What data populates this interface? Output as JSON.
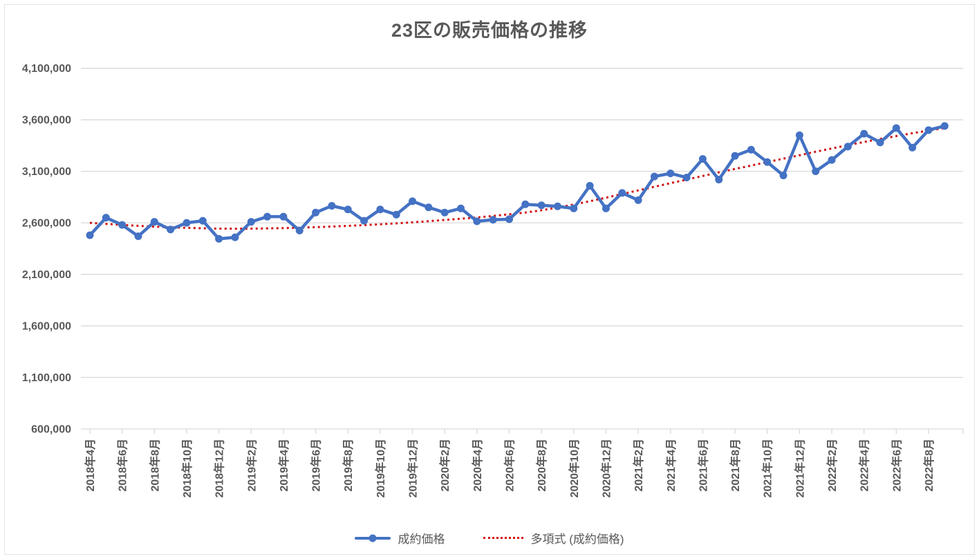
{
  "chart_data": {
    "type": "line",
    "title": "23区の販売価格の推移",
    "xlabel": "",
    "ylabel": "",
    "grid": true,
    "legend_position": "bottom",
    "y_axis": {
      "min": 600000,
      "max": 4100000,
      "step": 500000
    },
    "x_tick_step": 2,
    "categories": [
      "2018年4月",
      "2018年5月",
      "2018年6月",
      "2018年7月",
      "2018年8月",
      "2018年9月",
      "2018年10月",
      "2018年11月",
      "2018年12月",
      "2019年1月",
      "2019年2月",
      "2019年3月",
      "2019年4月",
      "2019年5月",
      "2019年6月",
      "2019年7月",
      "2019年8月",
      "2019年9月",
      "2019年10月",
      "2019年11月",
      "2019年12月",
      "2020年1月",
      "2020年2月",
      "2020年3月",
      "2020年4月",
      "2020年5月",
      "2020年6月",
      "2020年7月",
      "2020年8月",
      "2020年9月",
      "2020年10月",
      "2020年11月",
      "2020年12月",
      "2021年1月",
      "2021年2月",
      "2021年3月",
      "2021年4月",
      "2021年5月",
      "2021年6月",
      "2021年7月",
      "2021年8月",
      "2021年9月",
      "2021年10月",
      "2021年11月",
      "2021年12月",
      "2022年1月",
      "2022年2月",
      "2022年3月",
      "2022年4月",
      "2022年5月",
      "2022年6月",
      "2022年7月",
      "2022年8月",
      "2022年9月"
    ],
    "series": [
      {
        "name": "成約価格",
        "color": "#4472C4",
        "style": "solid-with-markers",
        "values": [
          2480000,
          2650000,
          2580000,
          2470000,
          2610000,
          2535000,
          2600000,
          2620000,
          2445000,
          2460000,
          2610000,
          2660000,
          2660000,
          2525000,
          2700000,
          2765000,
          2730000,
          2620000,
          2730000,
          2680000,
          2810000,
          2750000,
          2700000,
          2740000,
          2615000,
          2630000,
          2635000,
          2780000,
          2770000,
          2760000,
          2740000,
          2960000,
          2740000,
          2890000,
          2820000,
          3050000,
          3080000,
          3040000,
          3220000,
          3020000,
          3250000,
          3310000,
          3190000,
          3060000,
          3450000,
          3100000,
          3210000,
          3340000,
          3465000,
          3380000,
          3520000,
          3330000,
          3500000,
          3540000
        ]
      },
      {
        "name": "多項式 (成約価格)",
        "color": "#D01112",
        "style": "dotted-trendline",
        "values": [
          2600000,
          2590000,
          2580000,
          2571000,
          2563000,
          2557000,
          2552000,
          2547000,
          2544000,
          2543000,
          2544000,
          2546000,
          2549000,
          2553000,
          2558000,
          2564000,
          2571000,
          2578000,
          2586000,
          2595000,
          2605000,
          2616000,
          2628000,
          2640000,
          2652000,
          2667000,
          2683000,
          2700000,
          2722000,
          2748000,
          2778000,
          2810000,
          2844000,
          2880000,
          2915000,
          2950000,
          2985000,
          3020000,
          3055000,
          3090000,
          3123000,
          3156000,
          3190000,
          3223000,
          3256000,
          3290000,
          3322000,
          3354000,
          3385000,
          3414000,
          3442000,
          3470000,
          3496000,
          3520000
        ]
      }
    ],
    "colors": {
      "axis_text": "#595959",
      "gridline": "#D9D9D9",
      "title_text": "#595959"
    }
  }
}
